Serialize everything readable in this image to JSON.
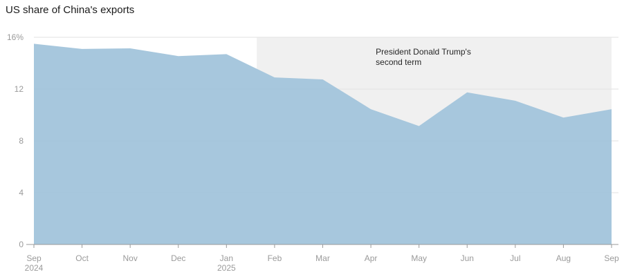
{
  "chart_data": {
    "type": "area",
    "title": "US share of China's exports",
    "xlabel": "",
    "ylabel": "",
    "x": [
      "Sep",
      "Oct",
      "Nov",
      "Dec",
      "Jan",
      "Feb",
      "Mar",
      "Apr",
      "May",
      "Jun",
      "Jul",
      "Aug",
      "Sep"
    ],
    "x_sub": [
      "2024",
      "",
      "",
      "",
      "2025",
      "",
      "",
      "",
      "",
      "",
      "",
      "",
      ""
    ],
    "values": [
      15.5,
      15.1,
      15.15,
      14.55,
      14.7,
      12.9,
      12.75,
      10.45,
      9.15,
      11.75,
      11.1,
      9.8,
      10.45
    ],
    "ylim": [
      0,
      16
    ],
    "yticks": [
      0,
      4,
      8,
      12,
      16
    ],
    "ytick_labels": [
      "0",
      "4",
      "8",
      "12",
      "16%"
    ],
    "series_color": "#a4c5dc",
    "shaded_region": {
      "start": 4.63,
      "end": 12,
      "label_line1": "President Donald Trump's",
      "label_line2": "second term",
      "color": "#f0f0f0"
    },
    "grid": true
  }
}
